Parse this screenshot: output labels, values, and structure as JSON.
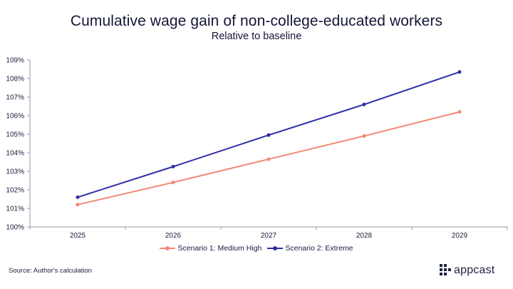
{
  "chart_data": {
    "type": "line",
    "title": "Cumulative wage gain of non-college-educated workers",
    "subtitle": "Relative to baseline",
    "categories": [
      "2025",
      "2026",
      "2027",
      "2028",
      "2029"
    ],
    "series": [
      {
        "name": "Scenario 1:  Medium High",
        "color": "#f28a78",
        "values": [
          101.2,
          102.4,
          103.65,
          104.9,
          106.2
        ]
      },
      {
        "name": "Scenario 2: Extreme",
        "color": "#2e2ea6",
        "values": [
          101.6,
          103.25,
          104.95,
          106.6,
          108.35
        ]
      }
    ],
    "ylim": [
      100,
      109
    ],
    "yticks": [
      "100%",
      "101%",
      "102%",
      "103%",
      "104%",
      "105%",
      "106%",
      "107%",
      "108%",
      "109%"
    ],
    "xlabel": "",
    "ylabel": "",
    "grid": false,
    "legend_position": "bottom"
  },
  "footer": {
    "source": "Source: Author's calculation",
    "logo_text": "appcast"
  }
}
